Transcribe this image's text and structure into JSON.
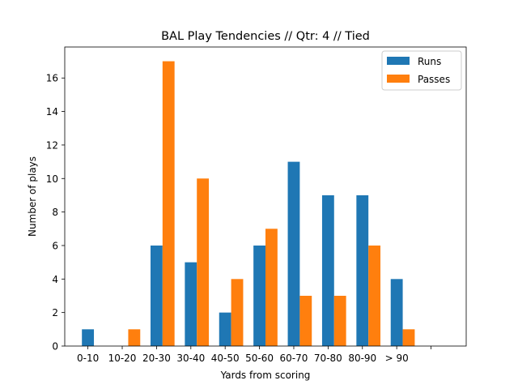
{
  "chart_data": {
    "type": "bar",
    "title": "BAL Play Tendencies // Qtr: 4 // Tied",
    "xlabel": "Yards from scoring",
    "ylabel": "Number of plays",
    "categories": [
      "0-10",
      "10-20",
      "20-30",
      "30-40",
      "40-50",
      "50-60",
      "60-70",
      "70-80",
      "80-90",
      "> 90",
      ""
    ],
    "series": [
      {
        "name": "Runs",
        "color": "#1f77b4",
        "values": [
          1,
          0,
          6,
          5,
          2,
          6,
          11,
          9,
          9,
          4,
          0
        ]
      },
      {
        "name": "Passes",
        "color": "#ff7f0e",
        "values": [
          0,
          1,
          17,
          10,
          4,
          7,
          3,
          3,
          6,
          1,
          0
        ]
      }
    ],
    "ylim": [
      0,
      17.85
    ],
    "yticks": [
      0,
      2,
      4,
      6,
      8,
      10,
      12,
      14,
      16
    ],
    "grid": false,
    "legend_position": "top-right"
  }
}
